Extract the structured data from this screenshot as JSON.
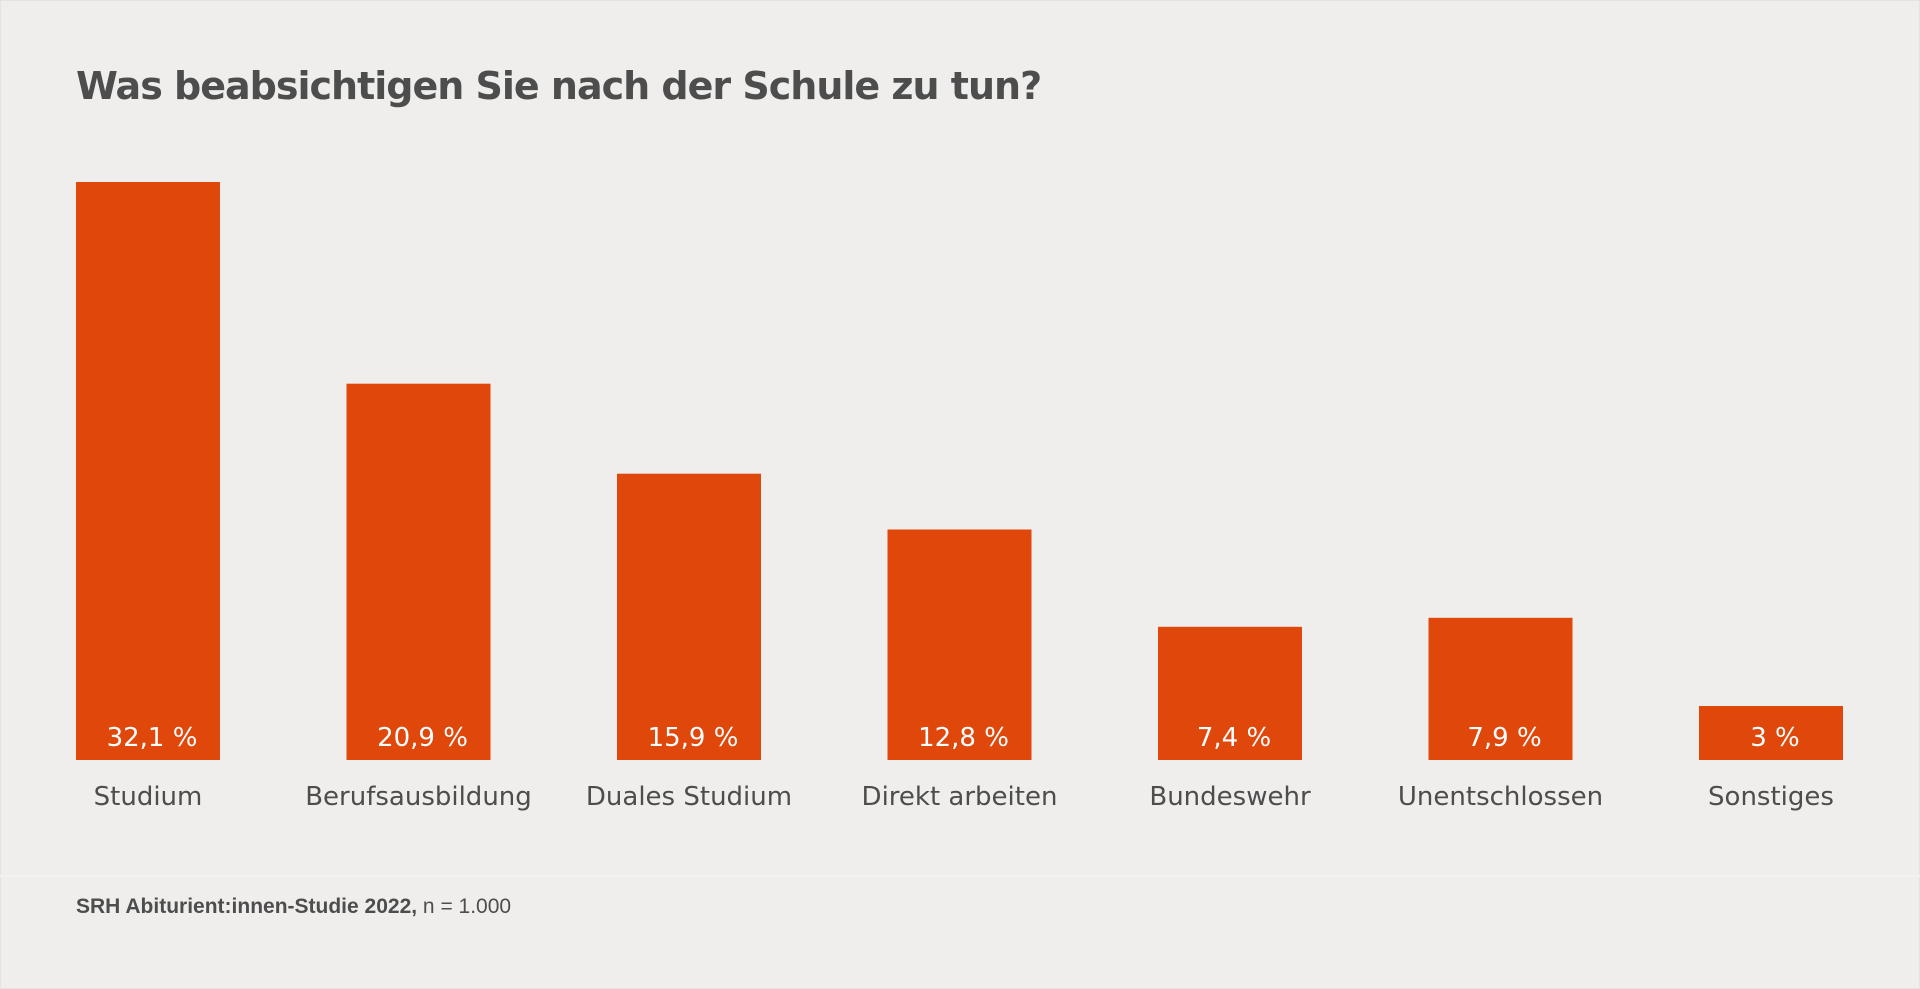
{
  "chart_data": {
    "type": "bar",
    "title": "Was beabsichtigen Sie nach der Schule zu tun?",
    "categories": [
      "Studium",
      "Berufsausbildung",
      "Duales Studium",
      "Direkt arbeiten",
      "Bundeswehr",
      "Unentschlossen",
      "Sonstiges"
    ],
    "values": [
      32.1,
      20.9,
      15.9,
      12.8,
      7.4,
      7.9,
      3
    ],
    "value_labels": [
      "32,1 %",
      "20,9 %",
      "15,9 %",
      "12,8 %",
      "7,4 %",
      "7,9 %",
      "3 %"
    ],
    "xlabel": "",
    "ylabel": "",
    "ylim": [
      0,
      32.1
    ],
    "grid": false,
    "bar_color": "#e0470b"
  },
  "footer": {
    "source_bold": "SRH Abiturient:innen-Studie 2022,",
    "source_rest": " n = 1.000"
  }
}
